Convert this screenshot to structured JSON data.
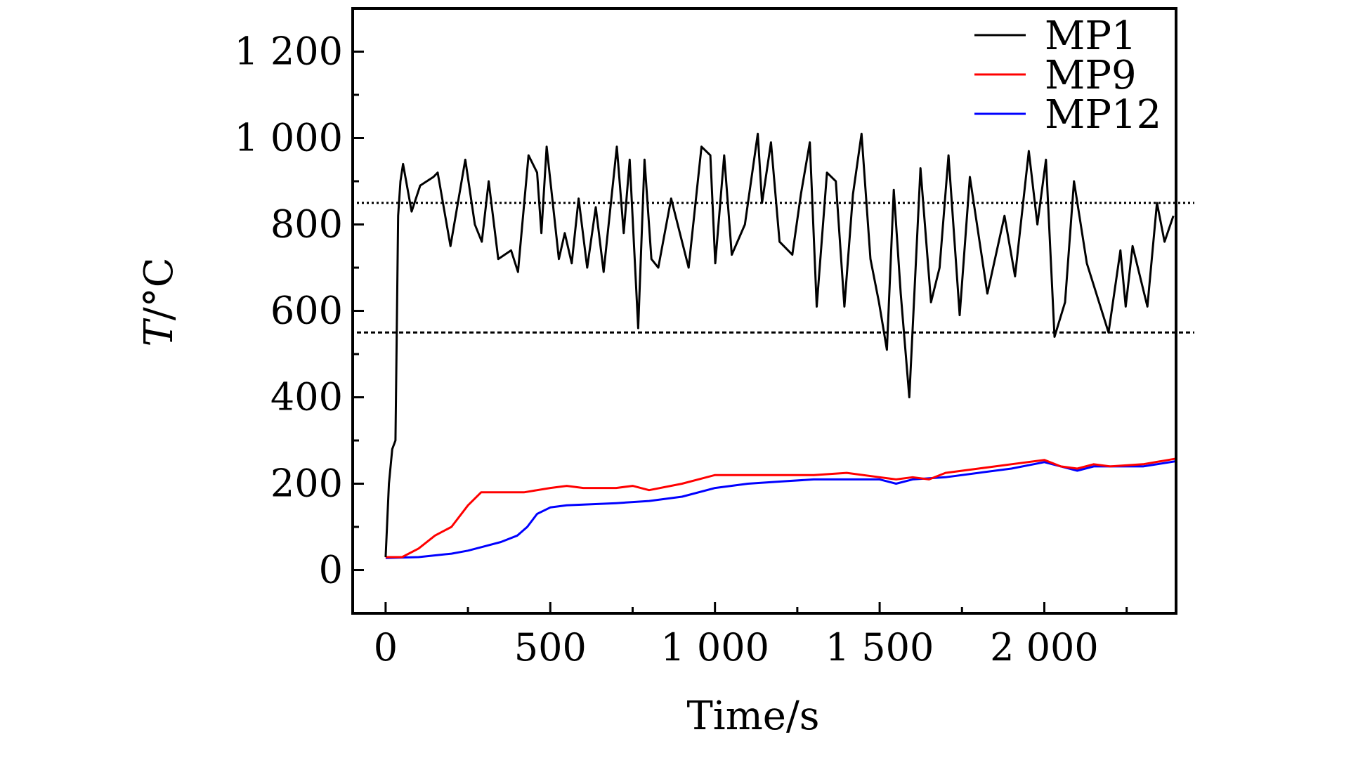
{
  "chart_data": {
    "type": "line",
    "title": "",
    "xlabel": "Time/s",
    "ylabel_italic": "T",
    "ylabel_rest": "/°C",
    "xlim": [
      -100,
      2400
    ],
    "ylim": [
      -100,
      1300
    ],
    "xticks": [
      0,
      500,
      1000,
      1500,
      2000
    ],
    "xtick_labels": [
      "0",
      "500",
      "1 000",
      "1 500",
      "2 000"
    ],
    "yticks": [
      0,
      200,
      400,
      600,
      800,
      1000,
      1200
    ],
    "ytick_labels": [
      "0",
      "200",
      "400",
      "600",
      "800",
      "1 000",
      "1 200"
    ],
    "grid": false,
    "legend_position": "top-right",
    "reference_lines": [
      {
        "y": 850,
        "style": "dotted",
        "color": "#000000"
      },
      {
        "y": 550,
        "style": "dashed",
        "color": "#000000"
      }
    ],
    "series": [
      {
        "name": "MP1",
        "color": "#000000",
        "x": [
          0,
          10,
          20,
          30,
          38,
          45,
          53,
          79,
          105,
          145,
          158,
          197,
          242,
          271,
          292,
          313,
          342,
          381,
          402,
          434,
          460,
          473,
          489,
          526,
          544,
          565,
          586,
          612,
          638,
          662,
          702,
          723,
          741,
          767,
          786,
          807,
          828,
          867,
          920,
          959,
          986,
          1001,
          1028,
          1051,
          1091,
          1130,
          1143,
          1170,
          1196,
          1235,
          1261,
          1288,
          1309,
          1340,
          1367,
          1393,
          1419,
          1445,
          1472,
          1498,
          1522,
          1543,
          1564,
          1590,
          1624,
          1656,
          1682,
          1709,
          1743,
          1774,
          1827,
          1879,
          1911,
          1953,
          1979,
          2005,
          2031,
          2063,
          2090,
          2129,
          2195,
          2231,
          2247,
          2268,
          2313,
          2342,
          2365,
          2392
        ],
        "y": [
          30,
          200,
          280,
          300,
          820,
          900,
          940,
          830,
          890,
          910,
          920,
          750,
          950,
          800,
          760,
          900,
          720,
          740,
          690,
          960,
          920,
          780,
          980,
          720,
          780,
          710,
          860,
          700,
          840,
          690,
          980,
          780,
          950,
          560,
          950,
          720,
          700,
          860,
          700,
          980,
          960,
          710,
          960,
          730,
          800,
          1010,
          850,
          990,
          760,
          730,
          870,
          990,
          610,
          920,
          900,
          610,
          870,
          1010,
          720,
          620,
          510,
          880,
          640,
          400,
          930,
          620,
          700,
          960,
          590,
          910,
          640,
          820,
          680,
          970,
          800,
          950,
          540,
          620,
          900,
          710,
          550,
          740,
          610,
          750,
          610,
          850,
          760,
          820
        ]
      },
      {
        "name": "MP9",
        "color": "#ff0000",
        "x": [
          0,
          50,
          100,
          150,
          200,
          250,
          290,
          350,
          420,
          500,
          550,
          600,
          700,
          750,
          800,
          900,
          1000,
          1100,
          1200,
          1300,
          1400,
          1500,
          1550,
          1600,
          1650,
          1700,
          1800,
          1900,
          2000,
          2050,
          2100,
          2150,
          2200,
          2300,
          2400
        ],
        "y": [
          30,
          30,
          50,
          80,
          100,
          150,
          180,
          180,
          180,
          190,
          195,
          190,
          190,
          195,
          185,
          200,
          220,
          220,
          220,
          220,
          225,
          215,
          210,
          215,
          210,
          225,
          235,
          245,
          255,
          240,
          235,
          245,
          240,
          245,
          258
        ]
      },
      {
        "name": "MP12",
        "color": "#0000ff",
        "x": [
          0,
          100,
          200,
          250,
          300,
          350,
          400,
          430,
          460,
          500,
          550,
          700,
          800,
          900,
          1000,
          1100,
          1200,
          1300,
          1400,
          1500,
          1550,
          1600,
          1700,
          1800,
          1900,
          2000,
          2100,
          2150,
          2300,
          2400
        ],
        "y": [
          28,
          30,
          38,
          45,
          55,
          65,
          80,
          100,
          130,
          145,
          150,
          155,
          160,
          170,
          190,
          200,
          205,
          210,
          210,
          210,
          200,
          210,
          215,
          225,
          235,
          250,
          230,
          240,
          240,
          252
        ]
      }
    ]
  }
}
